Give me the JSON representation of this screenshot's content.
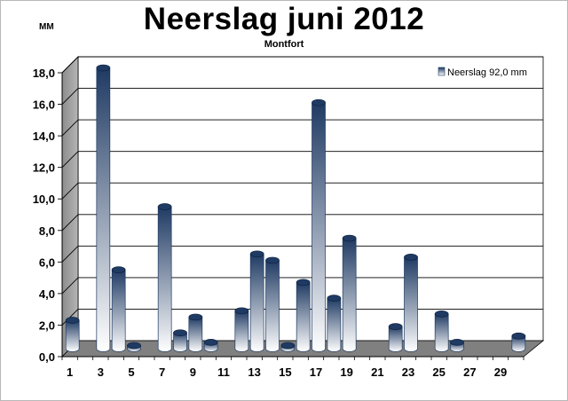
{
  "chart_data": {
    "type": "bar",
    "title": "Neerslag juni 2012",
    "subtitle": "Montfort",
    "ylabel": "MM",
    "ylim": [
      0,
      18
    ],
    "yticks": [
      "0,0",
      "2,0",
      "4,0",
      "6,0",
      "8,0",
      "10,0",
      "12,0",
      "14,0",
      "16,0",
      "18,0"
    ],
    "xtick_labels": [
      "1",
      "3",
      "5",
      "7",
      "9",
      "11",
      "13",
      "15",
      "17",
      "19",
      "21",
      "23",
      "25",
      "27",
      "29"
    ],
    "grid": true,
    "legend_position": "top-right",
    "categories": [
      "1",
      "2",
      "3",
      "4",
      "5",
      "6",
      "7",
      "8",
      "9",
      "10",
      "11",
      "12",
      "13",
      "14",
      "15",
      "16",
      "17",
      "18",
      "19",
      "20",
      "21",
      "22",
      "23",
      "24",
      "25",
      "26",
      "27",
      "28",
      "29",
      "30"
    ],
    "series": [
      {
        "name": "Neerslag 92,0 mm",
        "values": [
          1.8,
          0,
          17.8,
          5.0,
          0.2,
          0,
          9.0,
          1.0,
          2.0,
          0.4,
          0,
          2.4,
          6.0,
          5.6,
          0.2,
          4.2,
          15.6,
          3.2,
          7.0,
          0,
          0,
          1.4,
          5.8,
          0,
          2.2,
          0.4,
          0,
          0,
          0,
          0.8
        ]
      }
    ],
    "colors": {
      "bar_dark": "#1f3a63",
      "bar_light": "#ffffff",
      "floor": "#808080",
      "wall": "#999999"
    }
  }
}
